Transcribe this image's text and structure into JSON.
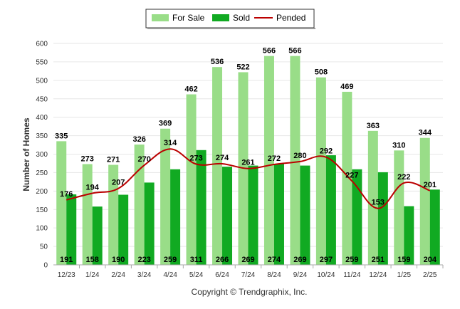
{
  "chart_data": {
    "type": "bar",
    "ylabel": "Number of Homes",
    "ylim": [
      0,
      600
    ],
    "yticks": [
      0,
      50,
      100,
      150,
      200,
      250,
      300,
      350,
      400,
      450,
      500,
      550,
      600
    ],
    "categories": [
      "12/23",
      "1/24",
      "2/24",
      "3/24",
      "4/24",
      "5/24",
      "6/24",
      "7/24",
      "8/24",
      "9/24",
      "10/24",
      "11/24",
      "12/24",
      "1/25",
      "2/25"
    ],
    "series": [
      {
        "name": "For Sale",
        "type": "bar",
        "color": "#99dd88",
        "values": [
          335,
          273,
          271,
          326,
          369,
          462,
          536,
          522,
          566,
          566,
          508,
          469,
          363,
          310,
          344
        ]
      },
      {
        "name": "Sold",
        "type": "bar",
        "color": "#11aa22",
        "values": [
          191,
          158,
          190,
          223,
          259,
          311,
          266,
          269,
          274,
          269,
          297,
          259,
          251,
          159,
          204
        ]
      },
      {
        "name": "Pended",
        "type": "line",
        "color": "#bb0000",
        "values": [
          176,
          194,
          207,
          270,
          314,
          273,
          274,
          261,
          272,
          280,
          292,
          227,
          153,
          222,
          201
        ]
      }
    ],
    "legend_position": "top-center",
    "grid": true
  },
  "footer": {
    "copyright": "Copyright © Trendgraphix, Inc."
  }
}
